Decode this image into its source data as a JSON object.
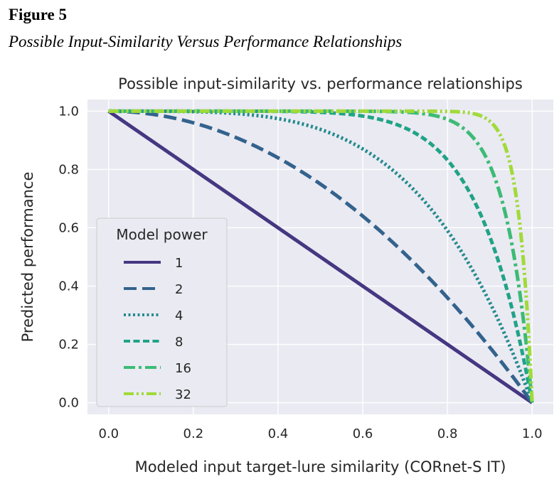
{
  "figure": {
    "label": "Figure 5",
    "caption": "Possible Input-Similarity Versus Performance Relationships"
  },
  "chart_data": {
    "type": "line",
    "title": "Possible input-similarity vs. performance relationships",
    "xlabel": "Modeled input target-lure similarity (CORnet-S IT)",
    "ylabel": "Predicted performance",
    "xlim": [
      -0.05,
      1.05
    ],
    "ylim": [
      -0.04,
      1.04
    ],
    "xticks": [
      "0.0",
      "0.2",
      "0.4",
      "0.6",
      "0.8",
      "1.0"
    ],
    "yticks": [
      "0.0",
      "0.2",
      "0.4",
      "0.6",
      "0.8",
      "1.0"
    ],
    "grid": true,
    "legend": {
      "title": "Model power",
      "placement": "lower-left"
    },
    "series": [
      {
        "name": "1",
        "power": 1,
        "color": "#453781",
        "dash": "solid"
      },
      {
        "name": "2",
        "power": 2,
        "color": "#33638d",
        "dash": "dashed"
      },
      {
        "name": "4",
        "power": 4,
        "color": "#238a8d",
        "dash": "dotted"
      },
      {
        "name": "8",
        "power": 8,
        "color": "#20a386",
        "dash": "dash-short"
      },
      {
        "name": "16",
        "power": 16,
        "color": "#3cbb75",
        "dash": "dashdot"
      },
      {
        "name": "32",
        "power": 32,
        "color": "#a0da39",
        "dash": "dashdotdot"
      }
    ],
    "function": "y = 1 - x^power"
  }
}
